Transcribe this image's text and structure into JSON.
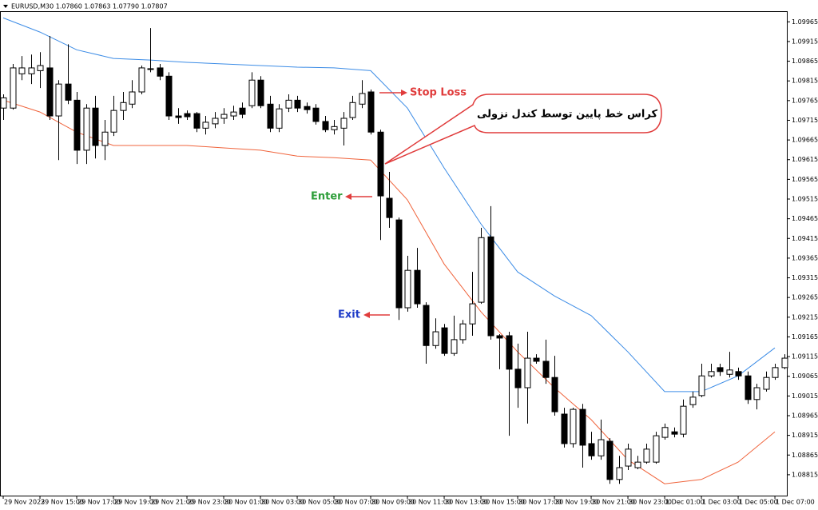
{
  "chart_data": {
    "type": "candlestick",
    "title": "EURUSD,M30  1.07860 1.07863 1.07790 1.07807",
    "annotations": [
      "Stop Loss",
      "Enter",
      "Exit",
      "کراس خط پایین توسط کندل نزولی"
    ],
    "x": [
      0,
      1,
      2,
      3,
      4,
      5,
      6,
      7,
      8,
      9,
      10,
      11,
      12,
      13,
      14,
      15,
      16,
      17,
      18,
      19,
      20,
      21,
      22,
      23,
      24,
      25,
      26,
      27,
      28,
      29,
      30,
      31,
      32,
      33,
      34,
      35,
      36,
      37,
      38,
      39,
      40,
      41,
      42,
      43,
      44,
      45,
      46,
      47,
      48,
      49,
      50,
      51,
      52,
      53,
      54,
      55,
      56,
      57,
      58,
      59,
      60,
      61,
      62,
      63,
      64,
      65,
      66,
      67,
      68,
      69,
      70,
      71,
      72,
      73,
      74,
      75,
      76,
      77,
      78,
      79,
      80,
      81,
      82,
      83,
      84,
      85
    ],
    "open": [
      1.09746,
      1.09746,
      1.09833,
      1.09833,
      1.09841,
      1.09848,
      1.09726,
      1.09807,
      1.09766,
      1.09639,
      1.09746,
      1.09651,
      1.09685,
      1.0974,
      1.09756,
      1.09787,
      1.09844,
      1.09848,
      1.09827,
      1.09726,
      1.09732,
      1.09732,
      1.09695,
      1.09706,
      1.0972,
      1.09726,
      1.09746,
      1.09752,
      1.09817,
      1.09756,
      1.09695,
      1.09746,
      1.09766,
      1.0975,
      1.09746,
      1.09712,
      1.09691,
      1.09695,
      1.09722,
      1.09756,
      1.09787,
      1.09685,
      1.09517,
      1.09462,
      1.09239,
      1.09334,
      1.09245,
      1.09143,
      1.09188,
      1.09123,
      1.09158,
      1.09198,
      1.09253,
      1.09419,
      1.09168,
      1.09168,
      1.09083,
      1.09036,
      1.09111,
      1.09103,
      1.09062,
      1.08969,
      1.08894,
      1.08981,
      1.08894,
      1.08863,
      1.089,
      1.08803,
      1.08837,
      1.08833,
      1.08847,
      1.08847,
      1.0891,
      1.08924,
      1.08918,
      1.08993,
      1.09016,
      1.09066,
      1.09087,
      1.0907,
      1.09077,
      1.09066,
      1.09006,
      1.09032,
      1.09062,
      1.09087
    ],
    "high": [
      1.09781,
      1.09858,
      1.09878,
      1.09882,
      1.09888,
      1.09929,
      1.09817,
      1.09908,
      1.09787,
      1.09756,
      1.09777,
      1.09716,
      1.09777,
      1.09787,
      1.09817,
      1.09854,
      1.09949,
      1.09858,
      1.09837,
      1.09746,
      1.0974,
      1.09736,
      1.09726,
      1.09736,
      1.09746,
      1.09752,
      1.0976,
      1.09837,
      1.09827,
      1.09777,
      1.09756,
      1.09781,
      1.09777,
      1.0976,
      1.09756,
      1.09726,
      1.09716,
      1.09736,
      1.09777,
      1.09817,
      1.09793,
      1.09691,
      1.09584,
      1.09468,
      1.09371,
      1.09391,
      1.09253,
      1.09212,
      1.09198,
      1.09219,
      1.09208,
      1.0933,
      1.09442,
      1.09497,
      1.09172,
      1.09178,
      1.09148,
      1.09178,
      1.09121,
      1.09158,
      1.09117,
      1.08985,
      1.08985,
      1.08995,
      1.08924,
      1.08955,
      1.08908,
      1.08863,
      1.08894,
      1.08863,
      1.08894,
      1.08924,
      1.08945,
      1.08935,
      1.09006,
      1.09026,
      1.09097,
      1.09097,
      1.09097,
      1.09127,
      1.09087,
      1.09077,
      1.09046,
      1.09077,
      1.09097,
      1.09121
    ],
    "low": [
      1.09716,
      1.09742,
      1.09817,
      1.09807,
      1.09797,
      1.09716,
      1.09614,
      1.09756,
      1.09604,
      1.09604,
      1.09618,
      1.09614,
      1.09675,
      1.09716,
      1.09746,
      1.09781,
      1.09837,
      1.09817,
      1.09716,
      1.09706,
      1.09716,
      1.09685,
      1.09679,
      1.09695,
      1.09706,
      1.09716,
      1.0972,
      1.09746,
      1.09746,
      1.09685,
      1.09685,
      1.09736,
      1.09736,
      1.09732,
      1.09704,
      1.09685,
      1.09679,
      1.09651,
      1.09716,
      1.09746,
      1.09679,
      1.09411,
      1.09442,
      1.09208,
      1.09229,
      1.09239,
      1.09097,
      1.09135,
      1.09117,
      1.09117,
      1.09148,
      1.09168,
      1.09249,
      1.09158,
      1.09083,
      1.08914,
      1.08985,
      1.08945,
      1.09097,
      1.09046,
      1.08965,
      1.08884,
      1.08884,
      1.08833,
      1.08853,
      1.08853,
      1.08792,
      1.08792,
      1.08827,
      1.08829,
      1.08843,
      1.08843,
      1.08904,
      1.0891,
      1.0891,
      1.08985,
      1.09012,
      1.09062,
      1.09066,
      1.09062,
      1.09056,
      1.08995,
      1.08981,
      1.09026,
      1.09056,
      1.09083
    ],
    "close": [
      1.09772,
      1.09848,
      1.09848,
      1.09848,
      1.09854,
      1.09726,
      1.09807,
      1.09766,
      1.09639,
      1.09746,
      1.09651,
      1.09685,
      1.0974,
      1.0976,
      1.09787,
      1.09848,
      1.09846,
      1.09827,
      1.09726,
      1.09722,
      1.09724,
      1.09695,
      1.0971,
      1.0972,
      1.0973,
      1.09736,
      1.0973,
      1.09817,
      1.09752,
      1.09695,
      1.09744,
      1.09766,
      1.09746,
      1.09742,
      1.09712,
      1.09691,
      1.09699,
      1.0972,
      1.0976,
      1.09783,
      1.09685,
      1.09523,
      1.09468,
      1.09239,
      1.09334,
      1.09249,
      1.09143,
      1.09178,
      1.09123,
      1.09158,
      1.09198,
      1.09249,
      1.09417,
      1.09168,
      1.09162,
      1.09083,
      1.09036,
      1.09111,
      1.09103,
      1.09062,
      1.08975,
      1.08894,
      1.08981,
      1.0889,
      1.08863,
      1.08904,
      1.08803,
      1.08833,
      1.0888,
      1.08847,
      1.0888,
      1.08914,
      1.08935,
      1.08918,
      1.08989,
      1.09012,
      1.09066,
      1.09077,
      1.09077,
      1.09081,
      1.09066,
      1.09006,
      1.09036,
      1.09062,
      1.09087,
      1.09111
    ],
    "lines": [
      {
        "color": "#3c8ce6",
        "x": [
          0,
          4,
          8,
          12,
          16,
          20,
          24,
          28,
          32,
          36,
          40,
          44,
          48,
          52,
          56,
          60,
          64,
          68,
          72,
          76,
          80,
          84
        ],
        "values": [
          1.09975,
          1.09939,
          1.09894,
          1.09872,
          1.09868,
          1.09862,
          1.09858,
          1.09854,
          1.0985,
          1.09848,
          1.09841,
          1.09746,
          1.09594,
          1.09452,
          1.0933,
          1.09269,
          1.09219,
          1.09127,
          1.09026,
          1.09026,
          1.09066,
          1.09137
        ]
      },
      {
        "color": "#f0643c",
        "x": [
          0,
          4,
          8,
          12,
          16,
          20,
          24,
          28,
          32,
          36,
          40,
          44,
          48,
          52,
          56,
          60,
          64,
          68,
          72,
          76,
          80,
          84
        ],
        "values": [
          1.09766,
          1.09736,
          1.09685,
          1.09651,
          1.09651,
          1.09651,
          1.09645,
          1.09639,
          1.09624,
          1.0962,
          1.09614,
          1.09513,
          1.0935,
          1.09229,
          1.09127,
          1.09036,
          1.08955,
          1.08853,
          1.08792,
          1.08803,
          1.08847,
          1.08924
        ]
      }
    ],
    "xlim": [
      -0.35,
      85.3
    ],
    "ylim": [
      1.08762,
      1.09992
    ],
    "yticks": [
      1.09965,
      1.09915,
      1.09865,
      1.09815,
      1.09765,
      1.09715,
      1.09665,
      1.09615,
      1.09565,
      1.09515,
      1.09465,
      1.09415,
      1.09365,
      1.09315,
      1.09265,
      1.09215,
      1.09165,
      1.09115,
      1.09065,
      1.09015,
      1.08965,
      1.08915,
      1.08865,
      1.08815
    ],
    "xticks": [
      {
        "value": 0,
        "label": "29 Nov 2023"
      },
      {
        "value": 4,
        "label": "29 Nov 15:00"
      },
      {
        "value": 8,
        "label": "29 Nov 17:00"
      },
      {
        "value": 12,
        "label": "29 Nov 19:00"
      },
      {
        "value": 16,
        "label": "29 Nov 21:00"
      },
      {
        "value": 20,
        "label": "29 Nov 23:00"
      },
      {
        "value": 24,
        "label": "30 Nov 01:00"
      },
      {
        "value": 28,
        "label": "30 Nov 03:00"
      },
      {
        "value": 32,
        "label": "30 Nov 05:00"
      },
      {
        "value": 36,
        "label": "30 Nov 07:00"
      },
      {
        "value": 40,
        "label": "30 Nov 09:00"
      },
      {
        "value": 44,
        "label": "30 Nov 11:00"
      },
      {
        "value": 48,
        "label": "30 Nov 13:00"
      },
      {
        "value": 52,
        "label": "30 Nov 15:00"
      },
      {
        "value": 56,
        "label": "30 Nov 17:00"
      },
      {
        "value": 60,
        "label": "30 Nov 19:00"
      },
      {
        "value": 64,
        "label": "30 Nov 21:00"
      },
      {
        "value": 68,
        "label": "30 Nov 23:00"
      },
      {
        "value": 72,
        "label": "1 Dec 01:00"
      },
      {
        "value": 76,
        "label": "1 Dec 03:00"
      },
      {
        "value": 80,
        "label": "1 Dec 05:00"
      },
      {
        "value": 84,
        "label": "1 Dec 07:00"
      }
    ],
    "up_color": "#ffffff",
    "down_color": "#000000",
    "grid": false
  }
}
